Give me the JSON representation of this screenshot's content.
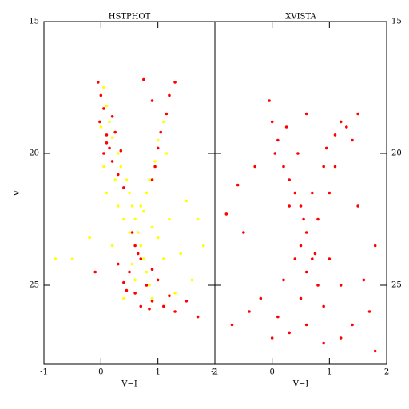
{
  "chart_data": [
    {
      "type": "scatter",
      "title": "HSTPHOT",
      "x_label": "V−I",
      "y_label": "V",
      "xlim": [
        -1,
        2
      ],
      "ylim": [
        28,
        15
      ],
      "xticks": [
        -1,
        0,
        1,
        2
      ],
      "yticks": [
        15,
        20,
        25
      ],
      "ytick_side": "left",
      "series": [
        {
          "color": "#ff0000",
          "x": [
            -0.05,
            0.0,
            0.05,
            -0.02,
            0.1,
            0.15,
            0.2,
            0.3,
            0.4,
            1.3,
            1.2,
            1.15,
            1.05,
            1.0,
            0.95,
            0.9,
            0.75,
            0.9,
            0.6,
            0.7,
            0.5,
            0.8,
            0.6,
            0.9,
            1.1,
            1.3,
            0.7,
            1.0,
            0.4,
            1.5,
            1.7,
            0.55,
            0.65,
            0.9,
            0.3,
            -0.1,
            0.1,
            0.25,
            0.05,
            0.35,
            0.2,
            0.85,
            1.2,
            0.45
          ],
          "values": [
            17.3,
            17.8,
            18.3,
            18.8,
            19.3,
            19.8,
            20.3,
            20.8,
            21.3,
            17.3,
            17.8,
            18.5,
            19.2,
            19.8,
            20.5,
            21.0,
            17.2,
            18.0,
            23.5,
            24.0,
            24.5,
            25.0,
            25.3,
            25.6,
            25.8,
            26.0,
            25.8,
            24.8,
            24.9,
            25.6,
            26.2,
            23.0,
            23.8,
            24.4,
            24.2,
            24.5,
            19.6,
            19.2,
            20.0,
            19.9,
            18.6,
            25.9,
            25.4,
            25.2
          ]
        },
        {
          "color": "#ffff00",
          "x": [
            0.05,
            0.1,
            0.15,
            0.2,
            0.3,
            0.35,
            0.45,
            0.5,
            0.55,
            0.6,
            0.65,
            0.7,
            0.75,
            0.8,
            0.85,
            0.9,
            1.0,
            0.95,
            0.85,
            0.8,
            0.7,
            0.4,
            0.9,
            1.2,
            1.5,
            1.7,
            1.8,
            1.4,
            0.2,
            -0.2,
            -0.5,
            -0.8,
            0.1,
            0.3,
            0.5,
            1.1,
            0.6,
            1.3,
            0.4,
            1.6,
            0.25,
            1.0,
            0.75,
            0.55,
            1.15,
            1.1,
            0.0,
            0.05
          ],
          "values": [
            17.5,
            18.2,
            18.8,
            19.4,
            20.0,
            20.5,
            21.0,
            21.5,
            22.0,
            22.5,
            23.0,
            23.5,
            24.0,
            24.5,
            25.0,
            25.5,
            19.5,
            20.3,
            21.0,
            21.5,
            22.0,
            22.5,
            22.8,
            22.5,
            21.8,
            22.5,
            23.5,
            23.8,
            23.5,
            23.2,
            24.0,
            24.0,
            21.5,
            22.0,
            23.0,
            24.0,
            24.8,
            25.3,
            25.5,
            24.8,
            21.0,
            23.2,
            22.2,
            24.2,
            20.0,
            18.8,
            19.0,
            20.5
          ]
        }
      ]
    },
    {
      "type": "scatter",
      "title": "XVISTA",
      "x_label": "V−I",
      "xlim": [
        -1,
        2
      ],
      "ylim": [
        28,
        15
      ],
      "xticks": [
        -1,
        0,
        1,
        2
      ],
      "yticks": [
        15,
        20,
        25
      ],
      "ytick_side": "right",
      "series": [
        {
          "color": "#ff0000",
          "x": [
            -0.05,
            0.0,
            0.1,
            0.05,
            0.2,
            0.3,
            0.4,
            0.5,
            0.55,
            0.6,
            0.5,
            0.7,
            0.6,
            0.8,
            0.5,
            0.9,
            0.3,
            0.7,
            0.9,
            1.0,
            0.8,
            0.4,
            0.2,
            1.0,
            1.2,
            1.3,
            1.1,
            1.4,
            1.2,
            1.5,
            0.95,
            1.1,
            0.6,
            -0.3,
            -0.6,
            -0.8,
            -0.5,
            1.5,
            1.8,
            1.6,
            -0.4,
            -0.7,
            0.0,
            0.3,
            0.9,
            1.4,
            1.8,
            1.2,
            0.6,
            -0.2,
            1.7,
            0.1,
            0.45,
            0.25,
            0.75
          ],
          "values": [
            18.0,
            18.8,
            19.5,
            20.0,
            20.5,
            21.0,
            21.5,
            22.0,
            22.5,
            23.0,
            23.5,
            24.0,
            24.5,
            25.0,
            25.5,
            25.8,
            22.0,
            21.5,
            20.5,
            21.5,
            22.5,
            24.0,
            24.8,
            24.0,
            25.0,
            19.0,
            19.3,
            19.5,
            18.8,
            18.5,
            19.8,
            20.5,
            18.5,
            20.5,
            21.2,
            22.3,
            23.0,
            22.0,
            23.5,
            24.8,
            26.0,
            26.5,
            27.0,
            26.8,
            27.2,
            26.5,
            27.5,
            27.0,
            26.5,
            25.5,
            26.0,
            26.2,
            20.0,
            19.0,
            23.8
          ]
        }
      ]
    }
  ]
}
